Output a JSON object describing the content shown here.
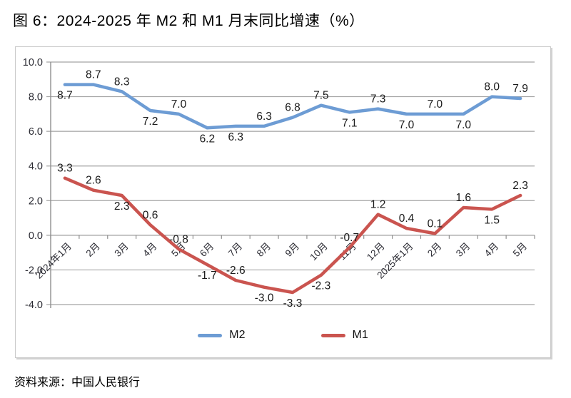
{
  "page": {
    "title": "图 6：2024-2025 年 M2 和 M1 月末同比增速（%）",
    "source": "资料来源：中国人民银行"
  },
  "chart_data": {
    "type": "line",
    "title": "2024-2025 年 M2 和 M1 月末同比增速（%）",
    "xlabel": "",
    "ylabel": "",
    "categories": [
      "2024年1月",
      "2月",
      "3月",
      "4月",
      "5月",
      "6月",
      "7月",
      "8月",
      "9月",
      "10月",
      "11月",
      "12月",
      "2025年1月",
      "2月",
      "3月",
      "4月",
      "5月"
    ],
    "series": [
      {
        "name": "M2",
        "color": "#6D9CD4",
        "values": [
          8.7,
          8.7,
          8.3,
          7.2,
          7.0,
          6.2,
          6.3,
          6.3,
          6.8,
          7.5,
          7.1,
          7.3,
          7.0,
          7.0,
          7.0,
          8.0,
          7.9
        ],
        "label_pos": [
          "below",
          "above",
          "above",
          "below",
          "above",
          "below",
          "below",
          "above",
          "above",
          "above",
          "below",
          "above",
          "below",
          "above",
          "below",
          "above",
          "above"
        ]
      },
      {
        "name": "M1",
        "color": "#CA544F",
        "values": [
          3.3,
          2.6,
          2.3,
          0.6,
          -0.8,
          -1.7,
          -2.6,
          -3.0,
          -3.3,
          -2.3,
          -0.7,
          1.2,
          0.4,
          0.1,
          1.6,
          1.5,
          2.3
        ],
        "label_pos": [
          "above",
          "above",
          "below",
          "above",
          "above",
          "below",
          "above",
          "below",
          "below",
          "below",
          "above",
          "above",
          "above",
          "above",
          "above",
          "below",
          "above"
        ]
      }
    ],
    "ylim": [
      -4,
      10
    ],
    "ytick_step": 2,
    "ytick_labels": [
      "10.0",
      "8.0",
      "6.0",
      "4.0",
      "2.0",
      "0.0",
      "-2.0",
      "-4.0"
    ],
    "grid": true,
    "legend_position": "bottom",
    "colors": {
      "grid": "#a3a3a3",
      "axis": "#8f8f8f",
      "tick_text": "#2b2b33",
      "value_text": "#1a1a1a"
    }
  }
}
